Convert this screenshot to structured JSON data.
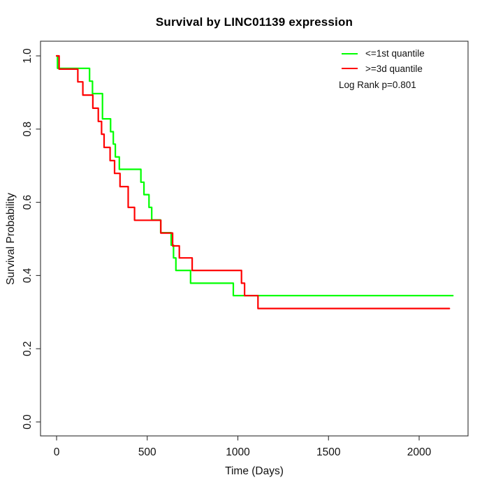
{
  "title": "Survival by LINC01139 expression",
  "axes": {
    "x": {
      "title": "Time (Days)",
      "ticks": [
        0,
        500,
        1000,
        1500,
        2000
      ]
    },
    "y": {
      "title": "Survival Probability",
      "ticks": [
        0.0,
        0.2,
        0.4,
        0.6,
        0.8,
        1.0
      ]
    }
  },
  "legend": {
    "items": [
      {
        "label": "<=1st quantile",
        "color": "#00ff00"
      },
      {
        "label": ">=3d quantile",
        "color": "#ff0000"
      }
    ],
    "note": "Log Rank p=0.801"
  },
  "chart_data": {
    "type": "line",
    "subtype": "kaplan-meier-step",
    "title": "Survival by LINC01139 expression",
    "xlabel": "Time (Days)",
    "ylabel": "Survival Probability",
    "xlim": [
      0,
      2270
    ],
    "ylim": [
      0,
      1
    ],
    "grid": false,
    "legend_position": "top-right",
    "annotation": "Log Rank p=0.801",
    "series": [
      {
        "name": "<=1st quantile",
        "color": "#00ff00",
        "end_time": 2186,
        "steps": [
          [
            0,
            1.0
          ],
          [
            5,
            0.966
          ],
          [
            182,
            0.931
          ],
          [
            198,
            0.897
          ],
          [
            253,
            0.828
          ],
          [
            298,
            0.793
          ],
          [
            313,
            0.759
          ],
          [
            324,
            0.724
          ],
          [
            346,
            0.69
          ],
          [
            465,
            0.655
          ],
          [
            482,
            0.621
          ],
          [
            510,
            0.586
          ],
          [
            525,
            0.552
          ],
          [
            574,
            0.517
          ],
          [
            632,
            0.483
          ],
          [
            645,
            0.448
          ],
          [
            658,
            0.414
          ],
          [
            739,
            0.379
          ],
          [
            975,
            0.345
          ]
        ]
      },
      {
        "name": ">=3d quantile",
        "color": "#ff0000",
        "end_time": 2167,
        "steps": [
          [
            0,
            1.0
          ],
          [
            14,
            0.964
          ],
          [
            117,
            0.929
          ],
          [
            145,
            0.893
          ],
          [
            200,
            0.857
          ],
          [
            230,
            0.821
          ],
          [
            248,
            0.786
          ],
          [
            262,
            0.75
          ],
          [
            295,
            0.714
          ],
          [
            320,
            0.679
          ],
          [
            350,
            0.643
          ],
          [
            395,
            0.586
          ],
          [
            430,
            0.551
          ],
          [
            575,
            0.516
          ],
          [
            640,
            0.481
          ],
          [
            677,
            0.448
          ],
          [
            748,
            0.414
          ],
          [
            1020,
            0.379
          ],
          [
            1037,
            0.345
          ],
          [
            1111,
            0.31
          ]
        ]
      }
    ]
  }
}
